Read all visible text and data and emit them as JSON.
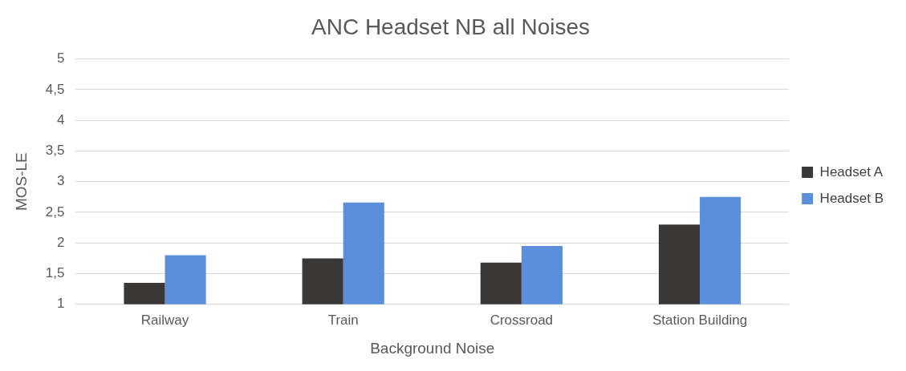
{
  "chart_data": {
    "type": "bar",
    "title": "ANC Headset NB all Noises",
    "xlabel": "Background Noise",
    "ylabel": "MOS-LE",
    "categories": [
      "Railway",
      "Train",
      "Crossroad",
      "Station Building"
    ],
    "series": [
      {
        "name": "Headset A",
        "color": "#3a3836",
        "values": [
          1.35,
          1.75,
          1.68,
          2.3
        ]
      },
      {
        "name": "Headset B",
        "color": "#5b8edb",
        "values": [
          1.8,
          2.66,
          1.95,
          2.75
        ]
      }
    ],
    "ylim": [
      1,
      5
    ],
    "yticks": [
      1,
      {
        "value": 1.5,
        "label": "1,5"
      },
      2,
      {
        "value": 2.5,
        "label": "2,5"
      },
      3,
      {
        "value": 3.5,
        "label": "3,5"
      },
      4,
      {
        "value": 4.5,
        "label": "4,5"
      },
      5
    ],
    "grid": "y",
    "legend": "right"
  }
}
